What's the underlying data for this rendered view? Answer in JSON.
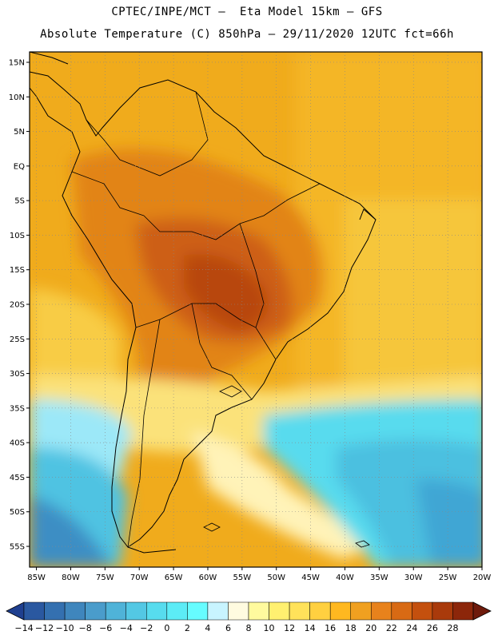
{
  "header": {
    "line1": "CPTEC/INPE/MCT –  Eta Model 15km – GFS",
    "line2": "Absolute Temperature (C) 850hPa – 29/11/2020 12UTC fct=66h"
  },
  "map": {
    "lat_labels": [
      "15N",
      "10N",
      "5N",
      "EQ",
      "5S",
      "10S",
      "15S",
      "20S",
      "25S",
      "30S",
      "35S",
      "40S",
      "45S",
      "50S",
      "55S"
    ],
    "lat_values": [
      15,
      10,
      5,
      0,
      -5,
      -10,
      -15,
      -20,
      -25,
      -30,
      -35,
      -40,
      -45,
      -50,
      -55
    ],
    "lon_labels": [
      "85W",
      "80W",
      "75W",
      "70W",
      "65W",
      "60W",
      "55W",
      "50W",
      "45W",
      "40W",
      "35W",
      "30W",
      "25W",
      "20W"
    ],
    "lon_values": [
      -85,
      -80,
      -75,
      -70,
      -65,
      -60,
      -55,
      -50,
      -45,
      -40,
      -35,
      -30,
      -25,
      -20
    ],
    "extent": {
      "lon_min": -86,
      "lon_max": -20,
      "lat_min": -58,
      "lat_max": 16.5
    },
    "gridlines": "dotted"
  },
  "colorbar": {
    "labels": [
      "−14",
      "−12",
      "−10",
      "−8",
      "−6",
      "−4",
      "−2",
      "0",
      "2",
      "4",
      "6",
      "8",
      "10",
      "12",
      "14",
      "16",
      "18",
      "20",
      "22",
      "24",
      "26",
      "28"
    ],
    "colors": [
      "#1f3f8f",
      "#2a58a0",
      "#3470b0",
      "#3f86bd",
      "#4a9ccb",
      "#4fb3d8",
      "#53c8e4",
      "#57dcee",
      "#5cecf6",
      "#66fcff",
      "#c8f4ff",
      "#fffbe0",
      "#fffa9e",
      "#fff070",
      "#ffe25a",
      "#ffd040",
      "#ffb820",
      "#f0a020",
      "#e8821c",
      "#d86a14",
      "#c4500e",
      "#a93a0b",
      "#8c260a",
      "#6e1a0b"
    ],
    "units": "C"
  }
}
